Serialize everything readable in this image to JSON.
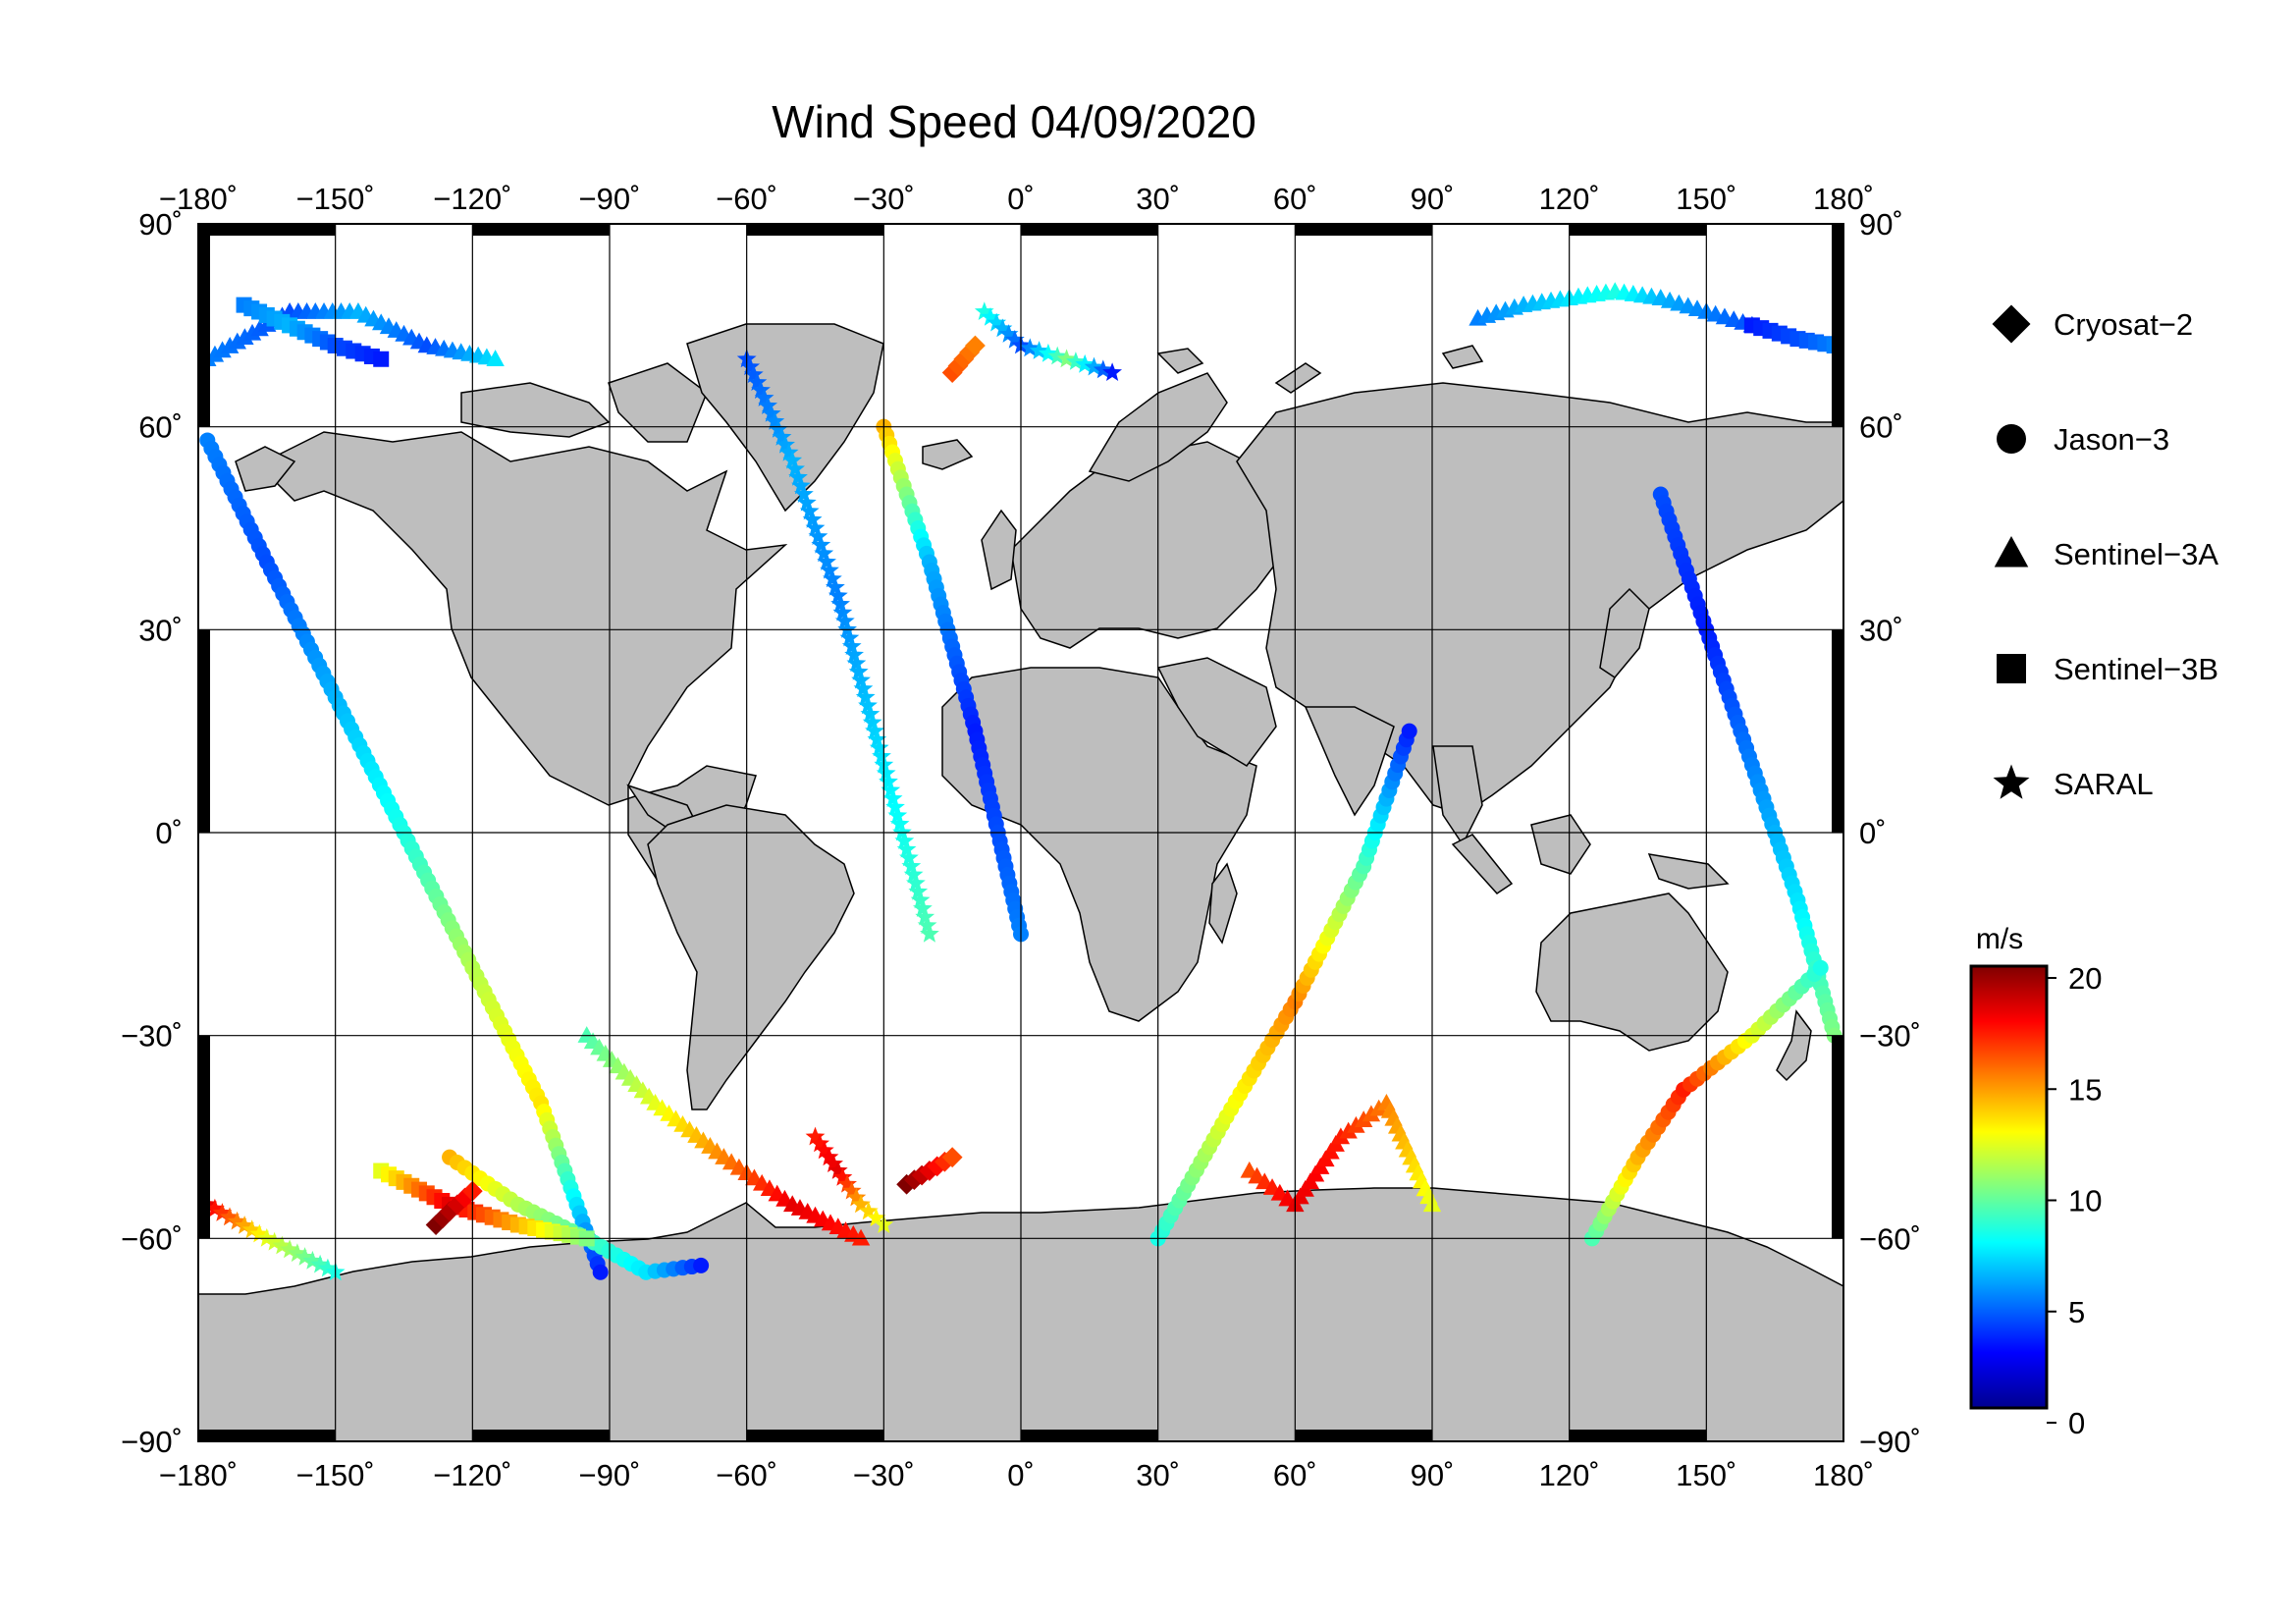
{
  "title": "Wind Speed 04/09/2020",
  "axes": {
    "lon_ticks": [
      {
        "value": -180,
        "label": "−180˚"
      },
      {
        "value": -150,
        "label": "−150˚"
      },
      {
        "value": -120,
        "label": "−120˚"
      },
      {
        "value": -90,
        "label": "−90˚"
      },
      {
        "value": -60,
        "label": "−60˚"
      },
      {
        "value": -30,
        "label": "−30˚"
      },
      {
        "value": 0,
        "label": "0˚"
      },
      {
        "value": 30,
        "label": "30˚"
      },
      {
        "value": 60,
        "label": "60˚"
      },
      {
        "value": 90,
        "label": "90˚"
      },
      {
        "value": 120,
        "label": "120˚"
      },
      {
        "value": 150,
        "label": "150˚"
      },
      {
        "value": 180,
        "label": "180˚"
      }
    ],
    "lat_ticks": [
      {
        "value": 90,
        "label": "90˚"
      },
      {
        "value": 60,
        "label": "60˚"
      },
      {
        "value": 30,
        "label": "30˚"
      },
      {
        "value": 0,
        "label": "0˚"
      },
      {
        "value": -30,
        "label": "−30˚"
      },
      {
        "value": -60,
        "label": "−60˚"
      },
      {
        "value": -90,
        "label": "−90˚"
      }
    ],
    "lon_range": [
      -180,
      180
    ],
    "lat_range": [
      -90,
      90
    ],
    "grid": true
  },
  "legend": {
    "items": [
      {
        "symbol": "diamond",
        "label": "Cryosat−2"
      },
      {
        "symbol": "circle",
        "label": "Jason−3"
      },
      {
        "symbol": "triangle",
        "label": "Sentinel−3A"
      },
      {
        "symbol": "square",
        "label": "Sentinel−3B"
      },
      {
        "symbol": "star",
        "label": "SARAL"
      }
    ]
  },
  "colorbar": {
    "unit": "m/s",
    "min": 0,
    "max": 20,
    "ticks": [
      {
        "value": 20,
        "label": "20"
      },
      {
        "value": 15,
        "label": "15"
      },
      {
        "value": 10,
        "label": "10"
      },
      {
        "value": 5,
        "label": "5"
      },
      {
        "value": 0,
        "label": "0"
      }
    ],
    "colors": [
      "#00008f",
      "#0000ff",
      "#0080ff",
      "#00ffff",
      "#80ff80",
      "#ffff00",
      "#ff8000",
      "#ff0000",
      "#800000"
    ]
  },
  "colors": {
    "land": "#bebebe",
    "ocean": "#ffffff",
    "grid": "#000000"
  },
  "chart_data": {
    "type": "scatter",
    "title": "Wind Speed 04/09/2020",
    "projection": "equirectangular",
    "value_unit": "m/s",
    "value_range": [
      0,
      20
    ],
    "series": [
      {
        "name": "Jason−3",
        "symbol": "circle",
        "tracks": [
          {
            "lon": [
              -178,
              -165,
              -150,
              -135,
              -120,
              -105,
              -92
            ],
            "lat": [
              58,
              40,
              20,
              0,
              -20,
              -40,
              -65
            ],
            "speed": [
              5,
              4,
              6,
              8,
              11,
              13,
              3
            ]
          },
          {
            "lon": [
              -125,
              -110,
              -95,
              -82,
              -70
            ],
            "lat": [
              -48,
              -55,
              -60,
              -65,
              -64
            ],
            "speed": [
              14,
              11,
              9,
              7,
              3
            ]
          },
          {
            "lon": [
              -30,
              -20,
              -10,
              0
            ],
            "lat": [
              60,
              40,
              15,
              -15
            ],
            "speed": [
              14,
              6,
              3,
              5
            ]
          },
          {
            "lon": [
              30,
              45,
              60,
              75,
              85
            ],
            "lat": [
              -60,
              -42,
              -25,
              -5,
              15
            ],
            "speed": [
              8,
              12,
              15,
              9,
              3
            ]
          },
          {
            "lon": [
              140,
              150,
              160,
              170,
              178
            ],
            "lat": [
              50,
              30,
              10,
              -10,
              -30
            ],
            "speed": [
              4,
              3,
              5,
              7,
              10
            ]
          },
          {
            "lon": [
              125,
              135,
              145,
              160,
              175
            ],
            "lat": [
              -60,
              -48,
              -38,
              -30,
              -20
            ],
            "speed": [
              9,
              14,
              17,
              12,
              8
            ]
          }
        ]
      },
      {
        "name": "Sentinel−3A",
        "symbol": "triangle",
        "tracks": [
          {
            "lon": [
              -178,
              -160,
              -145,
              -130,
              -115
            ],
            "lat": [
              70,
              77,
              77,
              72,
              70
            ],
            "speed": [
              5,
              4,
              6,
              4,
              7
            ]
          },
          {
            "lon": [
              -95,
              -80,
              -65,
              -50,
              -35
            ],
            "lat": [
              -30,
              -40,
              -48,
              -55,
              -60
            ],
            "speed": [
              9,
              12,
              15,
              18,
              17
            ]
          },
          {
            "lon": [
              100,
              110,
              120,
              130,
              140,
              150,
              160
            ],
            "lat": [
              76,
              78,
              79,
              80,
              79,
              77,
              75
            ],
            "speed": [
              5,
              6,
              7,
              8,
              6,
              5,
              4
            ]
          },
          {
            "lon": [
              50,
              60,
              70,
              80,
              90
            ],
            "lat": [
              -50,
              -55,
              -45,
              -40,
              -55
            ],
            "speed": [
              16,
              18,
              17,
              15,
              12
            ]
          }
        ]
      },
      {
        "name": "Sentinel−3B",
        "symbol": "square",
        "tracks": [
          {
            "lon": [
              -170,
              -160,
              -150,
              -140
            ],
            "lat": [
              78,
              75,
              72,
              70
            ],
            "speed": [
              5,
              6,
              4,
              3
            ]
          },
          {
            "lon": [
              160,
              170,
              178
            ],
            "lat": [
              75,
              73,
              72
            ],
            "speed": [
              3,
              4,
              5
            ]
          },
          {
            "lon": [
              -140,
              -125,
              -110,
              -95
            ],
            "lat": [
              -50,
              -55,
              -58,
              -60
            ],
            "speed": [
              12,
              18,
              14,
              10
            ]
          }
        ]
      },
      {
        "name": "SARAL",
        "symbol": "star",
        "tracks": [
          {
            "lon": [
              -60,
              -50,
              -40,
              -30,
              -20
            ],
            "lat": [
              70,
              55,
              35,
              10,
              -15
            ],
            "speed": [
              4,
              6,
              5,
              7,
              9
            ]
          },
          {
            "lon": [
              -8,
              0,
              10,
              20
            ],
            "lat": [
              77,
              72,
              70,
              68
            ],
            "speed": [
              8,
              4,
              10,
              3
            ]
          },
          {
            "lon": [
              -45,
              -40,
              -35,
              -30
            ],
            "lat": [
              -45,
              -50,
              -55,
              -58
            ],
            "speed": [
              17,
              18,
              14,
              12
            ]
          },
          {
            "lon": [
              -178,
              -165,
              -150
            ],
            "lat": [
              -55,
              -60,
              -65
            ],
            "speed": [
              18,
              12,
              8
            ]
          }
        ]
      },
      {
        "name": "Cryosat−2",
        "symbol": "diamond",
        "tracks": [
          {
            "lon": [
              -15,
              -10
            ],
            "lat": [
              68,
              72
            ],
            "speed": [
              16,
              15
            ]
          },
          {
            "lon": [
              -128,
              -125,
              -120
            ],
            "lat": [
              -58,
              -56,
              -53
            ],
            "speed": [
              20,
              19,
              17
            ]
          },
          {
            "lon": [
              -25,
              -20,
              -15
            ],
            "lat": [
              -52,
              -50,
              -48
            ],
            "speed": [
              20,
              18,
              16
            ]
          }
        ]
      }
    ]
  }
}
